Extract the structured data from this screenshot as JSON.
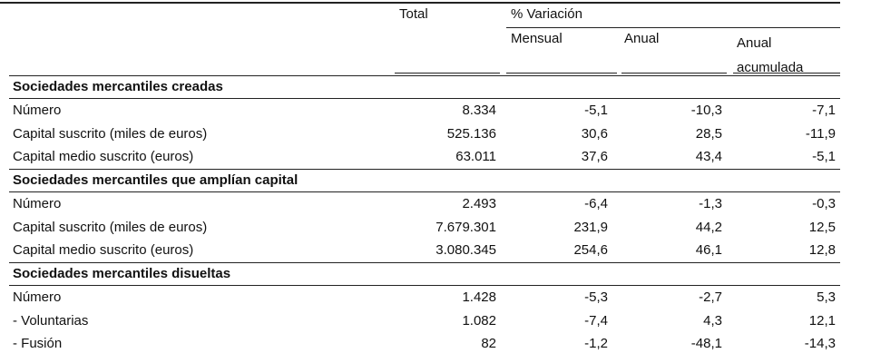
{
  "header": {
    "total": "Total",
    "variation": "% Variación",
    "monthly": "Mensual",
    "annual": "Anual",
    "cumulative": "Anual acumulada"
  },
  "sections": [
    {
      "title": "Sociedades mercantiles creadas",
      "rows": [
        [
          "Número",
          "8.334",
          "-5,1",
          "-10,3",
          "-7,1"
        ],
        [
          "Capital suscrito (miles de euros)",
          "525.136",
          "30,6",
          "28,5",
          "-11,9"
        ],
        [
          "Capital medio suscrito (euros)",
          "63.011",
          "37,6",
          "43,4",
          "-5,1"
        ]
      ]
    },
    {
      "title": "Sociedades mercantiles que amplían capital",
      "rows": [
        [
          "Número",
          "2.493",
          "-6,4",
          "-1,3",
          "-0,3"
        ],
        [
          "Capital suscrito (miles de euros)",
          "7.679.301",
          "231,9",
          "44,2",
          "12,5"
        ],
        [
          "Capital medio suscrito (euros)",
          "3.080.345",
          "254,6",
          "46,1",
          "12,8"
        ]
      ]
    },
    {
      "title": "Sociedades mercantiles disueltas",
      "rows": [
        [
          "Número",
          "1.428",
          "-5,3",
          "-2,7",
          "5,3"
        ],
        [
          "- Voluntarias",
          "1.082",
          "-7,4",
          "4,3",
          "12,1"
        ],
        [
          "- Fusión",
          "82",
          "-1,2",
          "-48,1",
          "-14,3"
        ]
      ]
    }
  ]
}
